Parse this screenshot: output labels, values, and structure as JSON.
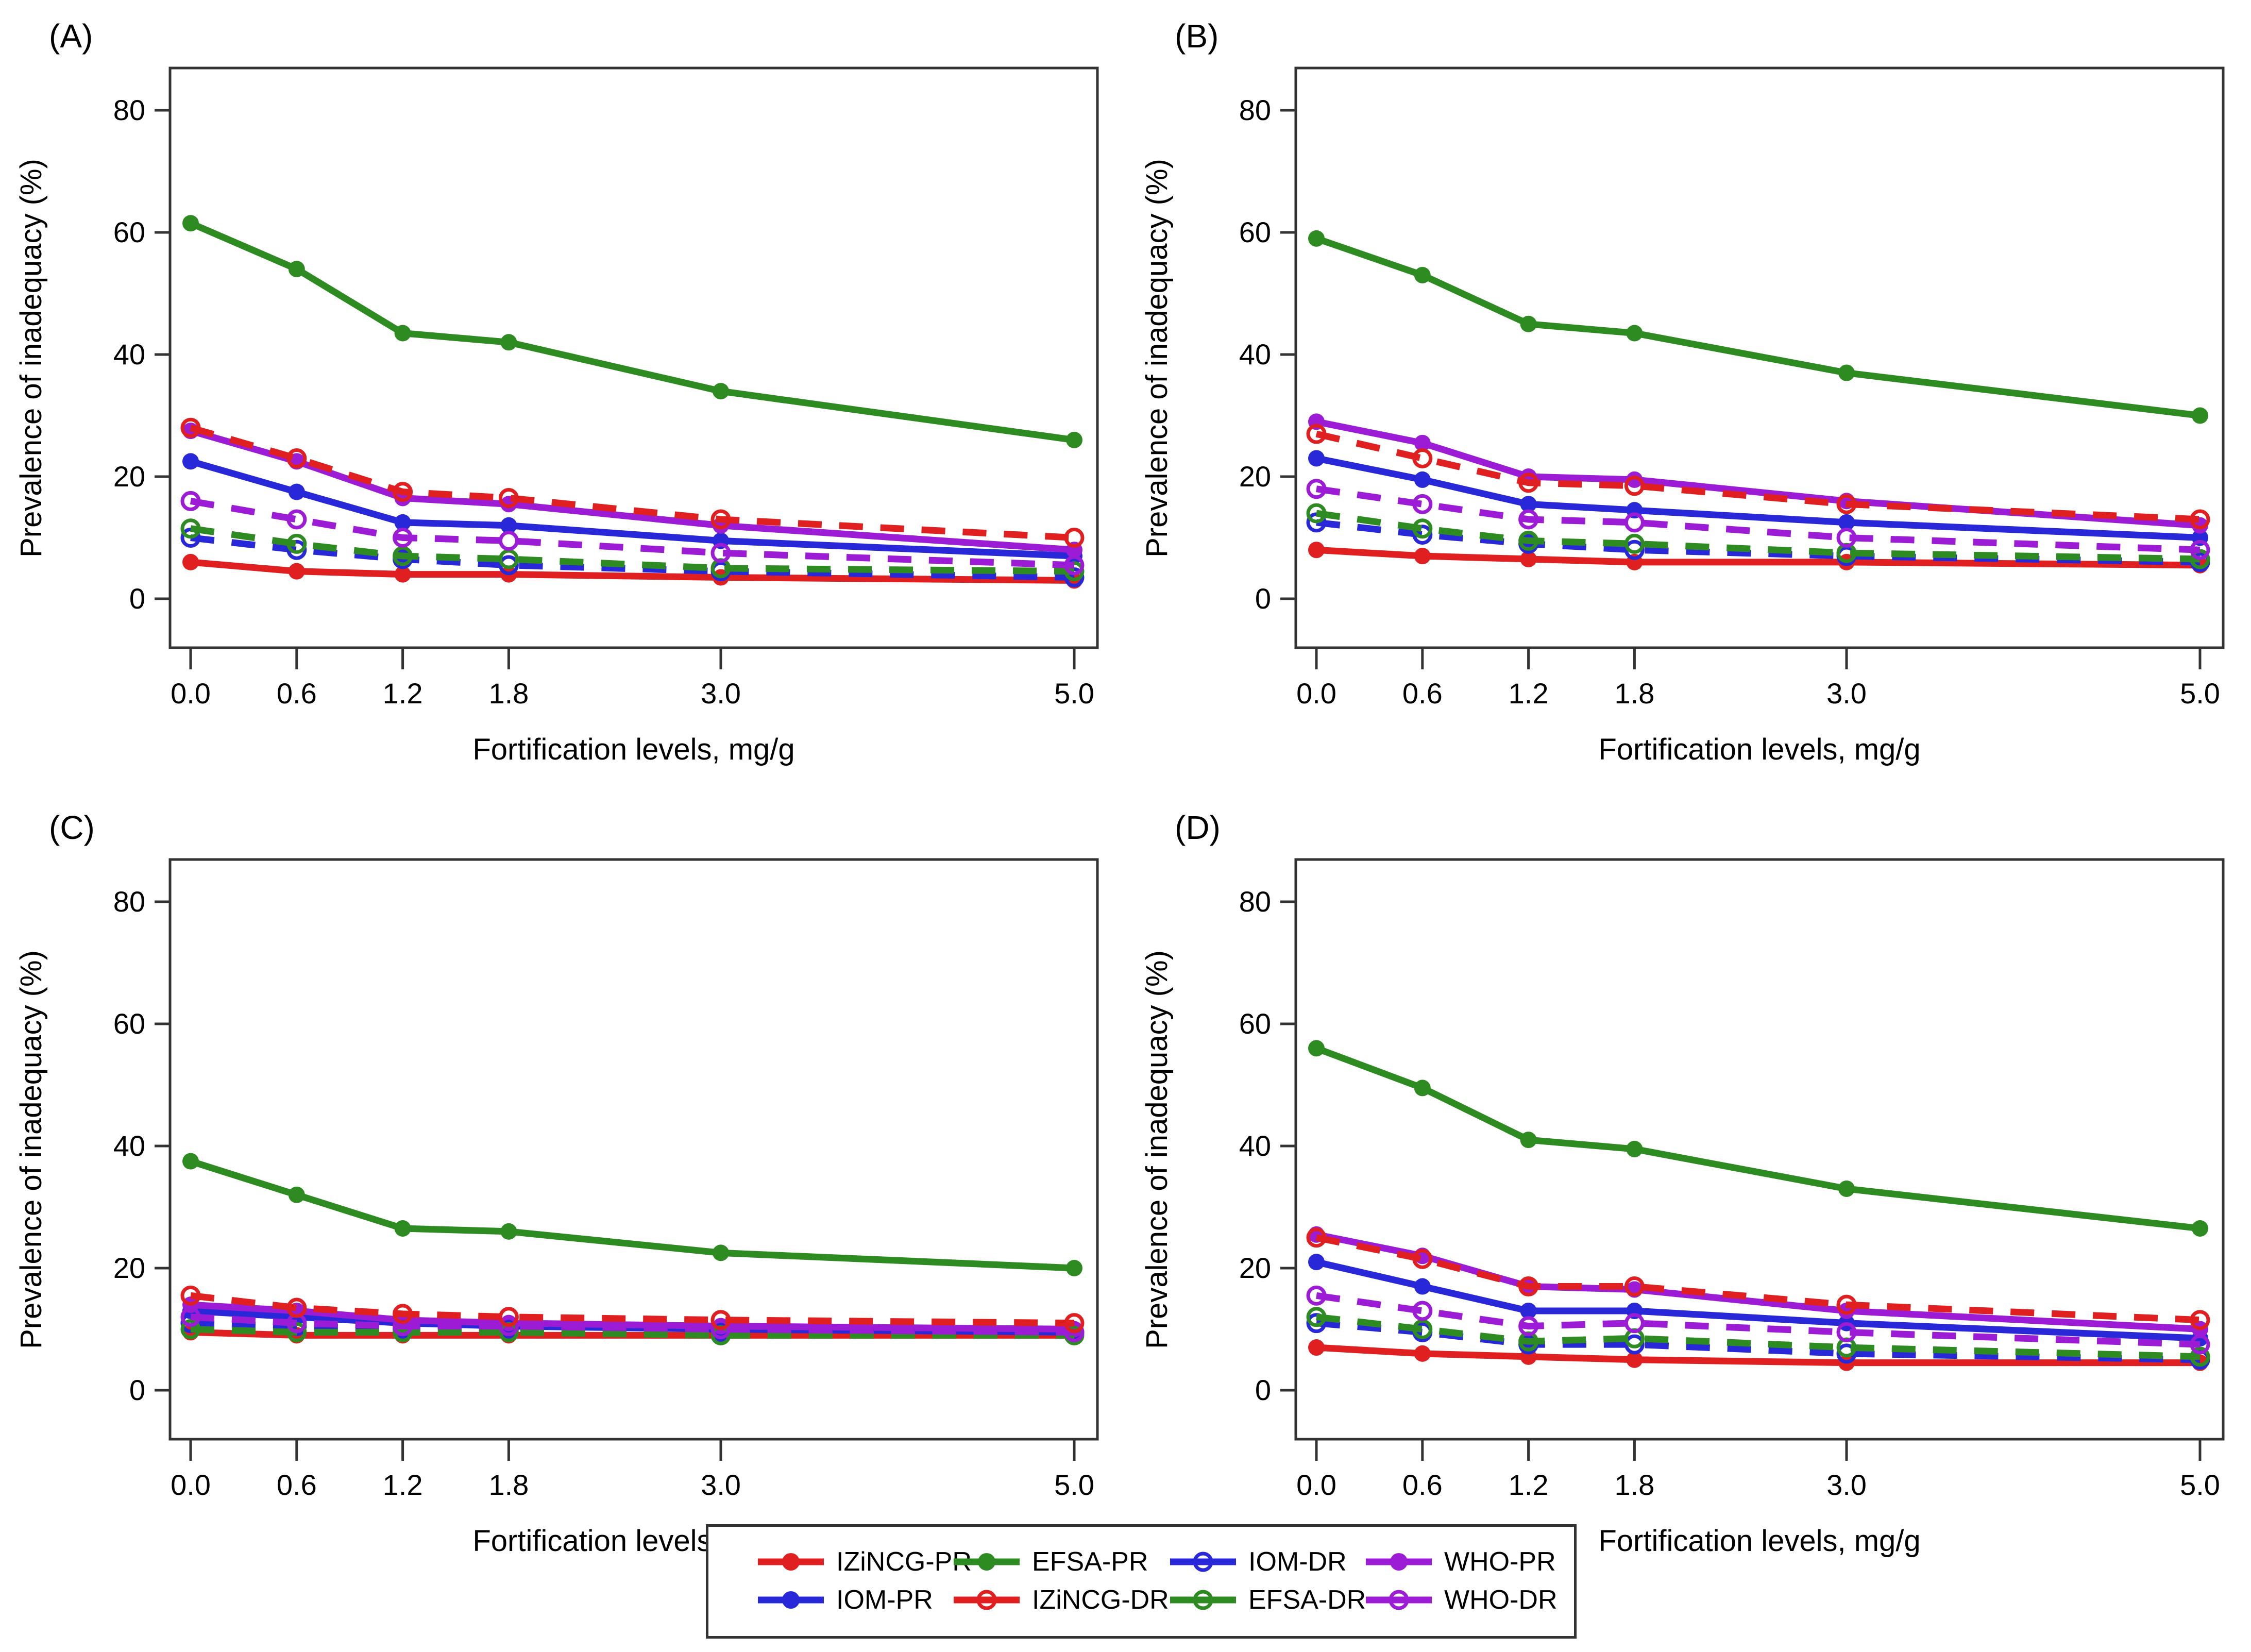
{
  "colors": {
    "red": "#E02020",
    "green": "#2E8B22",
    "blue": "#2828D8",
    "purple": "#9C1CD6",
    "axis": "#333333"
  },
  "chart_data": [
    {
      "id": "A",
      "label": "(A)",
      "type": "line",
      "xlabel": "Fortification levels, mg/g",
      "ylabel": "Prevalence of inadequacy (%)",
      "x": [
        0,
        0.6,
        1.2,
        1.8,
        3.0,
        5.0
      ],
      "xtick_labels": [
        "0.0",
        "0.6",
        "1.2",
        "1.8",
        "3.0",
        "5.0"
      ],
      "yticks": [
        0,
        20,
        40,
        60,
        80
      ],
      "ylim": [
        0,
        80
      ],
      "series": [
        {
          "name": "IZiNCG-PR",
          "color": "red",
          "line": "solid",
          "marker": "filled",
          "values": [
            6,
            4.5,
            4,
            4,
            3.5,
            3
          ]
        },
        {
          "name": "IOM-PR",
          "color": "blue",
          "line": "solid",
          "marker": "filled",
          "values": [
            22.5,
            17.5,
            12.5,
            12,
            9.5,
            7
          ]
        },
        {
          "name": "WHO-PR",
          "color": "purple",
          "line": "solid",
          "marker": "filled",
          "values": [
            27.5,
            22.5,
            16.5,
            15.5,
            12,
            8
          ]
        },
        {
          "name": "EFSA-PR",
          "color": "green",
          "line": "solid",
          "marker": "filled",
          "values": [
            61.5,
            54,
            43.5,
            42,
            34,
            26
          ]
        },
        {
          "name": "IOM-DR",
          "color": "blue",
          "line": "dashed",
          "marker": "open",
          "values": [
            10,
            8,
            6.5,
            5.5,
            4.5,
            3.5
          ]
        },
        {
          "name": "EFSA-DR",
          "color": "green",
          "line": "dashed",
          "marker": "open",
          "values": [
            11.5,
            9,
            7,
            6.5,
            5,
            4.5
          ]
        },
        {
          "name": "WHO-DR",
          "color": "purple",
          "line": "dashed",
          "marker": "open",
          "values": [
            16,
            13,
            10,
            9.5,
            7.5,
            5.5
          ]
        },
        {
          "name": "IZiNCG-DR",
          "color": "red",
          "line": "dashed",
          "marker": "open",
          "values": [
            28,
            23,
            17.5,
            16.5,
            13,
            10
          ]
        }
      ]
    },
    {
      "id": "B",
      "label": "(B)",
      "type": "line",
      "xlabel": "Fortification levels, mg/g",
      "ylabel": "Prevalence of inadequacy (%)",
      "x": [
        0,
        0.6,
        1.2,
        1.8,
        3.0,
        5.0
      ],
      "xtick_labels": [
        "0.0",
        "0.6",
        "1.2",
        "1.8",
        "3.0",
        "5.0"
      ],
      "yticks": [
        0,
        20,
        40,
        60,
        80
      ],
      "ylim": [
        0,
        80
      ],
      "series": [
        {
          "name": "IZiNCG-PR",
          "color": "red",
          "line": "solid",
          "marker": "filled",
          "values": [
            8,
            7,
            6.5,
            6,
            6,
            5.5
          ]
        },
        {
          "name": "IOM-PR",
          "color": "blue",
          "line": "solid",
          "marker": "filled",
          "values": [
            23,
            19.5,
            15.5,
            14.5,
            12.5,
            10
          ]
        },
        {
          "name": "WHO-PR",
          "color": "purple",
          "line": "solid",
          "marker": "filled",
          "values": [
            29,
            25.5,
            20,
            19.5,
            16,
            12
          ]
        },
        {
          "name": "EFSA-PR",
          "color": "green",
          "line": "solid",
          "marker": "filled",
          "values": [
            59,
            53,
            45,
            43.5,
            37,
            30
          ]
        },
        {
          "name": "IOM-DR",
          "color": "blue",
          "line": "dashed",
          "marker": "open",
          "values": [
            12.5,
            10.5,
            9,
            8,
            7,
            6
          ]
        },
        {
          "name": "EFSA-DR",
          "color": "green",
          "line": "dashed",
          "marker": "open",
          "values": [
            14,
            11.5,
            9.5,
            9,
            7.5,
            6.5
          ]
        },
        {
          "name": "WHO-DR",
          "color": "purple",
          "line": "dashed",
          "marker": "open",
          "values": [
            18,
            15.5,
            13,
            12.5,
            10,
            8
          ]
        },
        {
          "name": "IZiNCG-DR",
          "color": "red",
          "line": "dashed",
          "marker": "open",
          "values": [
            27,
            23,
            19,
            18.5,
            15.5,
            13
          ]
        }
      ]
    },
    {
      "id": "C",
      "label": "(C)",
      "type": "line",
      "xlabel": "Fortification levels, mg/g",
      "ylabel": "Prevalence of inadequacy (%)",
      "x": [
        0,
        0.6,
        1.2,
        1.8,
        3.0,
        5.0
      ],
      "xtick_labels": [
        "0.0",
        "0.6",
        "1.2",
        "1.8",
        "3.0",
        "5.0"
      ],
      "yticks": [
        0,
        20,
        40,
        60,
        80
      ],
      "ylim": [
        0,
        80
      ],
      "series": [
        {
          "name": "IZiNCG-PR",
          "color": "red",
          "line": "solid",
          "marker": "filled",
          "values": [
            9.5,
            9,
            9,
            9,
            9,
            9
          ]
        },
        {
          "name": "IOM-PR",
          "color": "blue",
          "line": "solid",
          "marker": "filled",
          "values": [
            13,
            12,
            11,
            10.5,
            10,
            9.5
          ]
        },
        {
          "name": "WHO-PR",
          "color": "purple",
          "line": "solid",
          "marker": "filled",
          "values": [
            14,
            13,
            11.5,
            11,
            10.5,
            10
          ]
        },
        {
          "name": "EFSA-PR",
          "color": "green",
          "line": "solid",
          "marker": "filled",
          "values": [
            37.5,
            32,
            26.5,
            26,
            22.5,
            20
          ]
        },
        {
          "name": "IOM-DR",
          "color": "blue",
          "line": "dashed",
          "marker": "open",
          "values": [
            11,
            10.5,
            10,
            10,
            9.5,
            9.5
          ]
        },
        {
          "name": "EFSA-DR",
          "color": "green",
          "line": "dashed",
          "marker": "open",
          "values": [
            10,
            9.5,
            9.5,
            9.5,
            9,
            9
          ]
        },
        {
          "name": "WHO-DR",
          "color": "purple",
          "line": "dashed",
          "marker": "open",
          "values": [
            12,
            11,
            10.5,
            10.5,
            10,
            9.5
          ]
        },
        {
          "name": "IZiNCG-DR",
          "color": "red",
          "line": "dashed",
          "marker": "open",
          "values": [
            15.5,
            13.5,
            12.5,
            12,
            11.5,
            11
          ]
        }
      ]
    },
    {
      "id": "D",
      "label": "(D)",
      "type": "line",
      "xlabel": "Fortification levels, mg/g",
      "ylabel": "Prevalence of inadequacy (%)",
      "x": [
        0,
        0.6,
        1.2,
        1.8,
        3.0,
        5.0
      ],
      "xtick_labels": [
        "0.0",
        "0.6",
        "1.2",
        "1.8",
        "3.0",
        "5.0"
      ],
      "yticks": [
        0,
        20,
        40,
        60,
        80
      ],
      "ylim": [
        0,
        80
      ],
      "series": [
        {
          "name": "IZiNCG-PR",
          "color": "red",
          "line": "solid",
          "marker": "filled",
          "values": [
            7,
            6,
            5.5,
            5,
            4.5,
            4.5
          ]
        },
        {
          "name": "IOM-PR",
          "color": "blue",
          "line": "solid",
          "marker": "filled",
          "values": [
            21,
            17,
            13,
            13,
            11,
            8.5
          ]
        },
        {
          "name": "WHO-PR",
          "color": "purple",
          "line": "solid",
          "marker": "filled",
          "values": [
            25.5,
            22,
            17,
            16.5,
            13,
            10
          ]
        },
        {
          "name": "EFSA-PR",
          "color": "green",
          "line": "solid",
          "marker": "filled",
          "values": [
            56,
            49.5,
            41,
            39.5,
            33,
            26.5
          ]
        },
        {
          "name": "IOM-DR",
          "color": "blue",
          "line": "dashed",
          "marker": "open",
          "values": [
            11,
            9.5,
            7.5,
            7.5,
            6,
            5
          ]
        },
        {
          "name": "EFSA-DR",
          "color": "green",
          "line": "dashed",
          "marker": "open",
          "values": [
            12,
            10,
            8,
            8.5,
            7,
            5.5
          ]
        },
        {
          "name": "WHO-DR",
          "color": "purple",
          "line": "dashed",
          "marker": "open",
          "values": [
            15.5,
            13,
            10.5,
            11,
            9.5,
            7.5
          ]
        },
        {
          "name": "IZiNCG-DR",
          "color": "red",
          "line": "dashed",
          "marker": "open",
          "values": [
            25,
            21.5,
            17,
            17,
            14,
            11.5
          ]
        }
      ]
    }
  ],
  "legend": {
    "rows": [
      [
        {
          "label": "IZiNCG-PR",
          "color": "red",
          "marker": "filled"
        },
        {
          "label": "EFSA-PR",
          "color": "green",
          "marker": "filled"
        },
        {
          "label": "IOM-DR",
          "color": "blue",
          "marker": "open"
        },
        {
          "label": "WHO-PR",
          "color": "purple",
          "marker": "filled"
        }
      ],
      [
        {
          "label": "IOM-PR",
          "color": "blue",
          "marker": "filled"
        },
        {
          "label": "IZiNCG-DR",
          "color": "red",
          "marker": "open"
        },
        {
          "label": "EFSA-DR",
          "color": "green",
          "marker": "open"
        },
        {
          "label": "WHO-DR",
          "color": "purple",
          "marker": "open"
        }
      ]
    ]
  }
}
